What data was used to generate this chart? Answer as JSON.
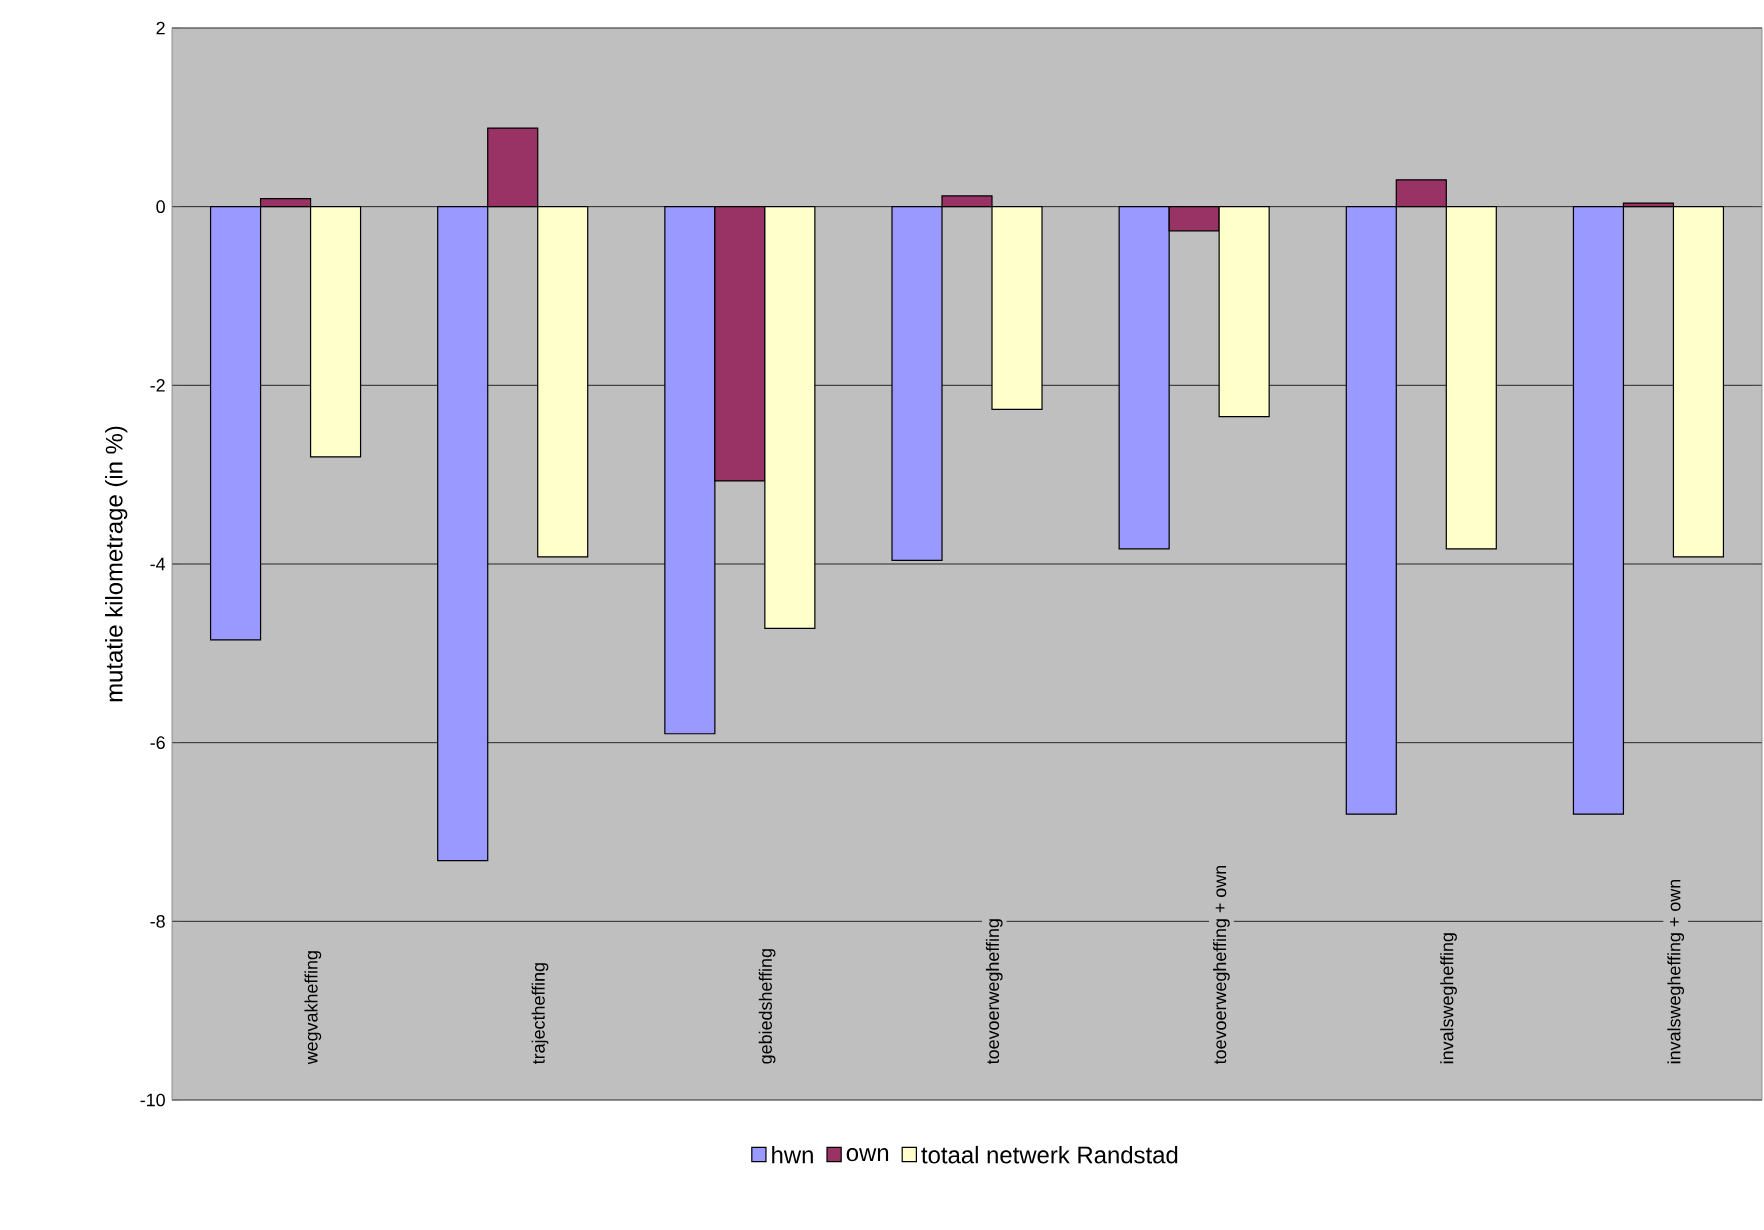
{
  "chart_data": {
    "type": "bar",
    "ylabel": "mutatie kilometrage (in %)",
    "categories": [
      "wegvakheffing",
      "trajectheffing",
      "gebiedsheffing",
      "toevoerwegheffing",
      "toevoerwegheffing + own",
      "invalswegheffing",
      "invalswegheffing + own"
    ],
    "series": [
      {
        "name": "hwn",
        "color": "#9999ff",
        "values": [
          -4.85,
          -7.32,
          -5.9,
          -3.96,
          -3.83,
          -6.8,
          -6.8
        ]
      },
      {
        "name": "own",
        "color": "#993366",
        "values": [
          0.09,
          0.88,
          -3.07,
          0.12,
          -0.27,
          0.3,
          0.04
        ]
      },
      {
        "name": "totaal netwerk Randstad",
        "color": "#ffffcc",
        "values": [
          -2.8,
          -3.92,
          -4.72,
          -2.27,
          -2.35,
          -3.83,
          -3.92
        ]
      }
    ],
    "ylim": [
      -10,
      2
    ],
    "yticks": [
      -10,
      -8,
      -6,
      -4,
      -2,
      0,
      2
    ],
    "grid": "y",
    "legend": "bottom"
  }
}
